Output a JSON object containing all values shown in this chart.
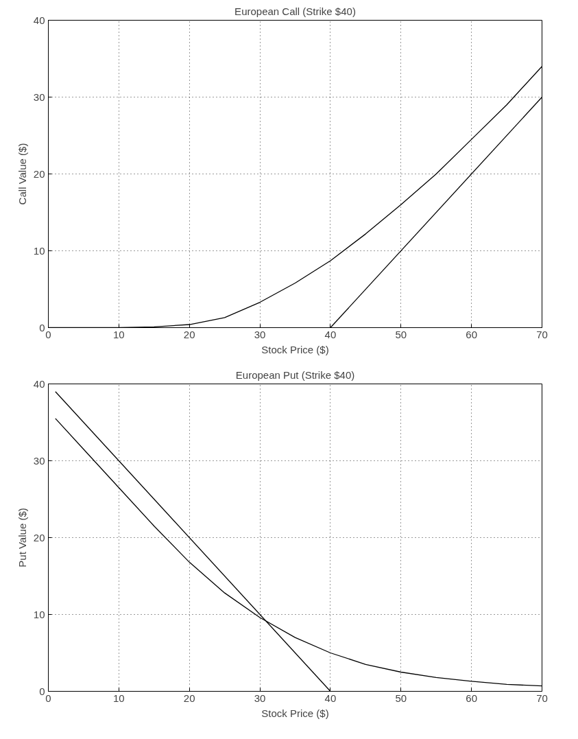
{
  "chart_data": [
    {
      "type": "line",
      "title": "European Call (Strike $40)",
      "xlabel": "Stock Price ($)",
      "ylabel": "Call Value ($)",
      "xlim": [
        0,
        70
      ],
      "ylim": [
        0,
        40
      ],
      "xticks": [
        0,
        10,
        20,
        30,
        40,
        50,
        60,
        70
      ],
      "yticks": [
        0,
        10,
        20,
        30,
        40
      ],
      "grid": true,
      "line_style": "solid",
      "marker": "none",
      "series": [
        {
          "color": "#000000",
          "x": [
            0,
            5,
            10,
            15,
            20,
            25,
            30,
            35,
            40,
            45,
            50,
            55,
            60,
            65,
            70
          ],
          "values": [
            0,
            0,
            0,
            0.1,
            0.4,
            1.3,
            3.3,
            5.8,
            8.7,
            12.2,
            16,
            20,
            24.5,
            29,
            34
          ]
        },
        {
          "color": "#000000",
          "x": [
            40,
            70
          ],
          "values": [
            0,
            30
          ]
        }
      ]
    },
    {
      "type": "line",
      "title": "European Put (Strike $40)",
      "xlabel": "Stock Price ($)",
      "ylabel": "Put Value ($)",
      "xlim": [
        0,
        70
      ],
      "ylim": [
        0,
        40
      ],
      "xticks": [
        0,
        10,
        20,
        30,
        40,
        50,
        60,
        70
      ],
      "yticks": [
        0,
        10,
        20,
        30,
        40
      ],
      "grid": true,
      "line_style": "solid",
      "marker": "none",
      "series": [
        {
          "color": "#000000",
          "x": [
            1,
            5,
            10,
            15,
            20,
            25,
            30,
            35,
            40,
            45,
            50,
            55,
            60,
            65,
            70
          ],
          "values": [
            35.5,
            31.5,
            26.5,
            21.5,
            16.8,
            12.8,
            9.6,
            7,
            5,
            3.5,
            2.5,
            1.8,
            1.3,
            0.9,
            0.7
          ]
        },
        {
          "color": "#000000",
          "x": [
            1,
            40
          ],
          "values": [
            39,
            0
          ]
        }
      ]
    }
  ]
}
